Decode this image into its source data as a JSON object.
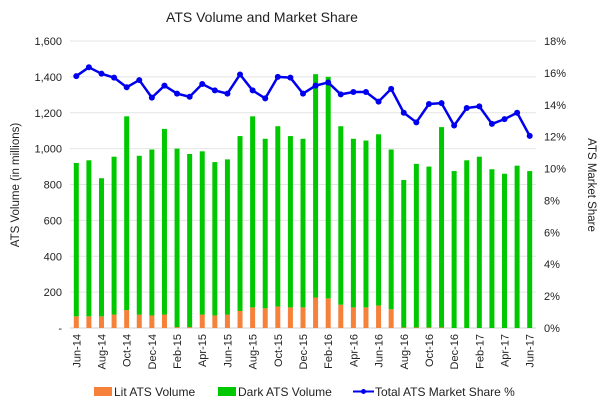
{
  "chart_data": {
    "type": "bar+line",
    "title": "ATS Volume and Market Share",
    "ylabel": "ATS Volume (in millions)",
    "y2label": "ATS Market Share",
    "ylim": [
      0,
      1600
    ],
    "y2lim": [
      0,
      18
    ],
    "yticks": [
      "-",
      "200",
      "400",
      "600",
      "800",
      "1,000",
      "1,200",
      "1,400",
      "1,600"
    ],
    "y2ticks": [
      "0%",
      "2%",
      "4%",
      "6%",
      "8%",
      "10%",
      "12%",
      "14%",
      "16%",
      "18%"
    ],
    "grid": true,
    "legend_placement": "bottom",
    "categories": [
      "Jun-14",
      "Jul-14",
      "Aug-14",
      "Sep-14",
      "Oct-14",
      "Nov-14",
      "Dec-14",
      "Jan-15",
      "Feb-15",
      "Mar-15",
      "Apr-15",
      "May-15",
      "Jun-15",
      "Jul-15",
      "Aug-15",
      "Sep-15",
      "Oct-15",
      "Nov-15",
      "Dec-15",
      "Jan-16",
      "Feb-16",
      "Mar-16",
      "Apr-16",
      "May-16",
      "Jun-16",
      "Jul-16",
      "Aug-16",
      "Sep-16",
      "Oct-16",
      "Nov-16",
      "Dec-16",
      "Jan-17",
      "Feb-17",
      "Mar-17",
      "Apr-17",
      "May-17",
      "Jun-17"
    ],
    "tick_labels": [
      "Jun-14",
      "Aug-14",
      "Oct-14",
      "Dec-14",
      "Feb-15",
      "Apr-15",
      "Jun-15",
      "Aug-15",
      "Oct-15",
      "Dec-15",
      "Feb-16",
      "Apr-16",
      "Jun-16",
      "Aug-16",
      "Oct-16",
      "Dec-16",
      "Feb-17",
      "Apr-17",
      "Jun-17"
    ],
    "series": [
      {
        "name": "Lit ATS Volume",
        "type": "stacked-bar",
        "color": "#f5813a",
        "values": [
          65,
          65,
          65,
          75,
          100,
          75,
          70,
          75,
          5,
          5,
          75,
          70,
          75,
          95,
          115,
          110,
          120,
          115,
          115,
          170,
          165,
          130,
          115,
          115,
          125,
          105,
          3,
          3,
          3,
          3,
          0,
          0,
          0,
          0,
          0,
          0,
          0
        ]
      },
      {
        "name": "Dark ATS Volume",
        "type": "stacked-bar",
        "color": "#00c800",
        "values": [
          855,
          870,
          770,
          880,
          1080,
          885,
          925,
          1035,
          995,
          965,
          910,
          855,
          865,
          975,
          1065,
          945,
          1005,
          955,
          940,
          1245,
          1235,
          995,
          940,
          930,
          955,
          890,
          822,
          912,
          897,
          1117,
          875,
          935,
          955,
          885,
          860,
          905,
          875
        ]
      },
      {
        "name": "Total ATS Market Share %",
        "type": "line",
        "axis": "right",
        "color": "#0000ee",
        "values": [
          15.8,
          16.35,
          15.95,
          15.7,
          15.1,
          15.55,
          14.45,
          15.2,
          14.7,
          14.5,
          15.3,
          14.9,
          14.7,
          15.9,
          14.9,
          14.4,
          15.75,
          15.7,
          14.7,
          15.2,
          15.4,
          14.65,
          14.8,
          14.8,
          14.2,
          15.0,
          13.5,
          12.9,
          14.05,
          14.1,
          12.7,
          13.8,
          13.9,
          12.8,
          13.1,
          13.5,
          12.05
        ]
      }
    ]
  }
}
